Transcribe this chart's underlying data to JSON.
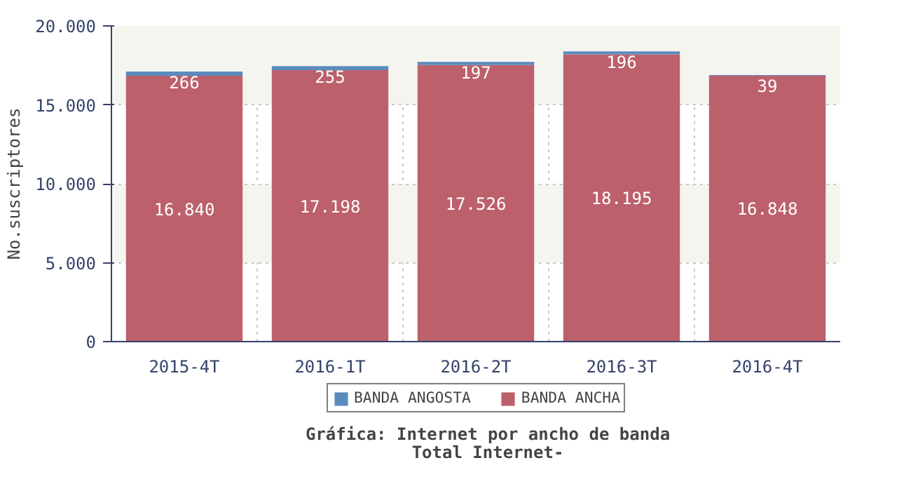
{
  "chart_data": {
    "type": "bar",
    "title": "Gráfica: Internet por ancho de banda",
    "subtitle": "Total Internet-",
    "ylabel": "No.suscriptores",
    "categories": [
      "2015-4T",
      "2016-1T",
      "2016-2T",
      "2016-3T",
      "2016-4T"
    ],
    "stacked": true,
    "series": [
      {
        "name": "BANDA ANCHA",
        "color": "#bc606b",
        "values": [
          16840,
          17198,
          17526,
          18195,
          16848
        ],
        "value_labels": [
          "16.840",
          "17.198",
          "17.526",
          "18.195",
          "16.848"
        ]
      },
      {
        "name": "BANDA ANGOSTA",
        "color": "#5b8bbd",
        "values": [
          266,
          255,
          197,
          196,
          39
        ],
        "value_labels": [
          "266",
          "255",
          "197",
          "196",
          "39"
        ]
      }
    ],
    "ylim": [
      0,
      20000
    ],
    "yticks": [
      {
        "value": 0,
        "label": "0"
      },
      {
        "value": 5000,
        "label": "5.000"
      },
      {
        "value": 10000,
        "label": "10.000"
      },
      {
        "value": 15000,
        "label": "15.000"
      },
      {
        "value": 20000,
        "label": "20.000"
      }
    ],
    "grid": true,
    "legend": "bottom"
  }
}
